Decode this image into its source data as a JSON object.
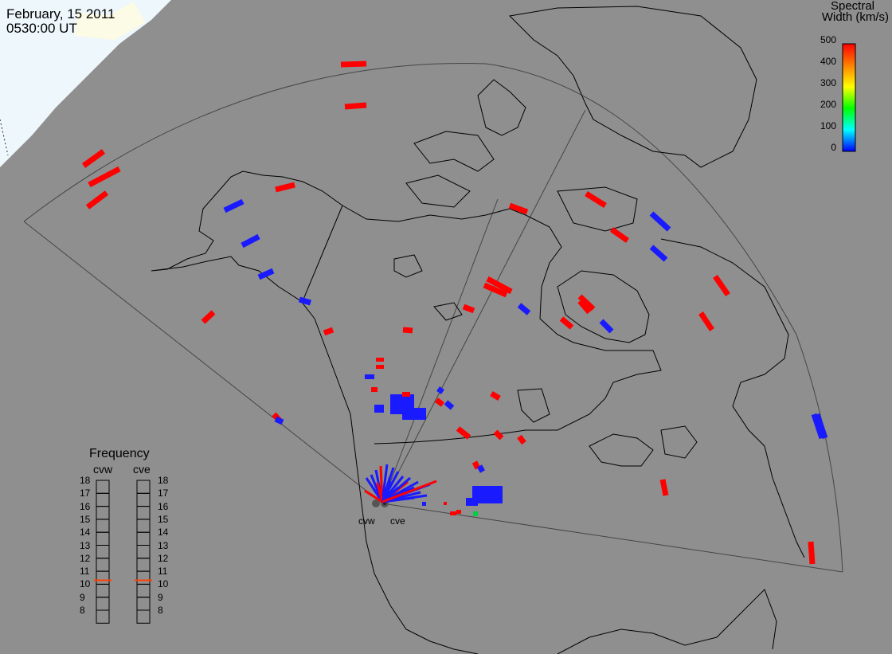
{
  "header": {
    "date": "February, 15 2011",
    "time": "0530:00 UT"
  },
  "colorbar": {
    "title_line1": "Spectral",
    "title_line2": "Width (km/s)",
    "ticks": [
      "500",
      "400",
      "300",
      "200",
      "100",
      "0"
    ],
    "colors": [
      "#ff0000",
      "#ff8000",
      "#ffff00",
      "#00ff00",
      "#00ffff",
      "#0000ff"
    ]
  },
  "frequency_panel": {
    "title": "Frequency",
    "radars": [
      "cvw",
      "cve"
    ],
    "ticks": [
      "18",
      "17",
      "16",
      "15",
      "14",
      "13",
      "12",
      "11",
      "10",
      "9",
      "8"
    ],
    "marker_color": "#ff4000",
    "values_mhz": {
      "cvw": 10.8,
      "cve": 10.8
    }
  },
  "radar_labels": [
    "cvw",
    "cve"
  ],
  "map": {
    "ocean_color": "#8f8f8f",
    "daylight_color": "#eef7fc"
  }
}
